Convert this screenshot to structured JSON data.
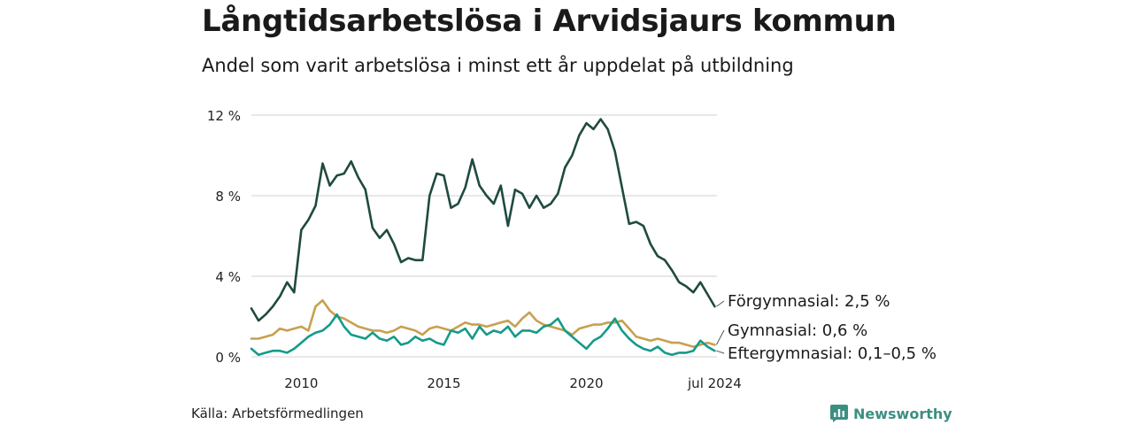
{
  "chart_data": {
    "type": "line",
    "title": "Långtidsarbetslösa i Arvidsjaurs kommun",
    "subtitle": "Andel som varit arbetslösa i minst ett år uppdelat på utbildning",
    "ylim": [
      0,
      12
    ],
    "yticks": [
      {
        "value": 0,
        "label": "0 %"
      },
      {
        "value": 4,
        "label": "4 %"
      },
      {
        "value": 8,
        "label": "8 %"
      },
      {
        "value": 12,
        "label": "12 %"
      }
    ],
    "xlim": [
      2008.25,
      2024.58
    ],
    "xticks": [
      {
        "value": 2010,
        "label": "2010"
      },
      {
        "value": 2015,
        "label": "2015"
      },
      {
        "value": 2020,
        "label": "2020"
      },
      {
        "value": 2024.5,
        "label": "jul 2024"
      }
    ],
    "grid": true,
    "series": [
      {
        "name": "Förgymnasial",
        "end_label": "Förgymnasial: 2,5 %",
        "color": "#1f4a40",
        "x": [
          2008.25,
          2008.5,
          2008.75,
          2009.0,
          2009.25,
          2009.5,
          2009.75,
          2010.0,
          2010.25,
          2010.5,
          2010.75,
          2011.0,
          2011.25,
          2011.5,
          2011.75,
          2012.0,
          2012.25,
          2012.5,
          2012.75,
          2013.0,
          2013.25,
          2013.5,
          2013.75,
          2014.0,
          2014.25,
          2014.5,
          2014.75,
          2015.0,
          2015.25,
          2015.5,
          2015.75,
          2016.0,
          2016.25,
          2016.5,
          2016.75,
          2017.0,
          2017.25,
          2017.5,
          2017.75,
          2018.0,
          2018.25,
          2018.5,
          2018.75,
          2019.0,
          2019.25,
          2019.5,
          2019.75,
          2020.0,
          2020.25,
          2020.5,
          2020.75,
          2021.0,
          2021.25,
          2021.5,
          2021.75,
          2022.0,
          2022.25,
          2022.5,
          2022.75,
          2023.0,
          2023.25,
          2023.5,
          2023.75,
          2024.0,
          2024.25,
          2024.5
        ],
        "values": [
          2.4,
          1.8,
          2.1,
          2.5,
          3.0,
          3.7,
          3.2,
          6.3,
          6.8,
          7.5,
          9.6,
          8.5,
          9.0,
          9.1,
          9.7,
          8.9,
          8.3,
          6.4,
          5.9,
          6.3,
          5.6,
          4.7,
          4.9,
          4.8,
          4.8,
          8.0,
          9.1,
          9.0,
          7.4,
          7.6,
          8.4,
          9.8,
          8.5,
          8.0,
          7.6,
          8.5,
          6.5,
          8.3,
          8.1,
          7.4,
          8.0,
          7.4,
          7.6,
          8.1,
          9.4,
          10.0,
          11.0,
          11.6,
          11.3,
          11.8,
          11.3,
          10.2,
          8.4,
          6.6,
          6.7,
          6.5,
          5.6,
          5.0,
          4.8,
          4.3,
          3.7,
          3.5,
          3.2,
          3.7,
          3.1,
          2.5
        ]
      },
      {
        "name": "Gymnasial",
        "end_label": "Gymnasial: 0,6 %",
        "color": "#c8a050",
        "x": [
          2008.25,
          2008.5,
          2008.75,
          2009.0,
          2009.25,
          2009.5,
          2009.75,
          2010.0,
          2010.25,
          2010.5,
          2010.75,
          2011.0,
          2011.25,
          2011.5,
          2011.75,
          2012.0,
          2012.25,
          2012.5,
          2012.75,
          2013.0,
          2013.25,
          2013.5,
          2013.75,
          2014.0,
          2014.25,
          2014.5,
          2014.75,
          2015.0,
          2015.25,
          2015.5,
          2015.75,
          2016.0,
          2016.25,
          2016.5,
          2016.75,
          2017.0,
          2017.25,
          2017.5,
          2017.75,
          2018.0,
          2018.25,
          2018.5,
          2018.75,
          2019.0,
          2019.25,
          2019.5,
          2019.75,
          2020.0,
          2020.25,
          2020.5,
          2020.75,
          2021.0,
          2021.25,
          2021.5,
          2021.75,
          2022.0,
          2022.25,
          2022.5,
          2022.75,
          2023.0,
          2023.25,
          2023.5,
          2023.75,
          2024.0,
          2024.25,
          2024.5
        ],
        "values": [
          0.9,
          0.9,
          1.0,
          1.1,
          1.4,
          1.3,
          1.4,
          1.5,
          1.3,
          2.5,
          2.8,
          2.3,
          2.0,
          1.9,
          1.7,
          1.5,
          1.4,
          1.3,
          1.3,
          1.2,
          1.3,
          1.5,
          1.4,
          1.3,
          1.1,
          1.4,
          1.5,
          1.4,
          1.3,
          1.5,
          1.7,
          1.6,
          1.6,
          1.5,
          1.6,
          1.7,
          1.8,
          1.5,
          1.9,
          2.2,
          1.8,
          1.6,
          1.5,
          1.4,
          1.3,
          1.1,
          1.4,
          1.5,
          1.6,
          1.6,
          1.7,
          1.7,
          1.8,
          1.4,
          1.0,
          0.9,
          0.8,
          0.9,
          0.8,
          0.7,
          0.7,
          0.6,
          0.5,
          0.6,
          0.7,
          0.6
        ]
      },
      {
        "name": "Eftergymnasial",
        "end_label": "Eftergymnasial: 0,1–0,5 %",
        "color": "#159a8a",
        "x": [
          2008.25,
          2008.5,
          2008.75,
          2009.0,
          2009.25,
          2009.5,
          2009.75,
          2010.0,
          2010.25,
          2010.5,
          2010.75,
          2011.0,
          2011.25,
          2011.5,
          2011.75,
          2012.0,
          2012.25,
          2012.5,
          2012.75,
          2013.0,
          2013.25,
          2013.5,
          2013.75,
          2014.0,
          2014.25,
          2014.5,
          2014.75,
          2015.0,
          2015.25,
          2015.5,
          2015.75,
          2016.0,
          2016.25,
          2016.5,
          2016.75,
          2017.0,
          2017.25,
          2017.5,
          2017.75,
          2018.0,
          2018.25,
          2018.5,
          2018.75,
          2019.0,
          2019.25,
          2019.5,
          2019.75,
          2020.0,
          2020.25,
          2020.5,
          2020.75,
          2021.0,
          2021.25,
          2021.5,
          2021.75,
          2022.0,
          2022.25,
          2022.5,
          2022.75,
          2023.0,
          2023.25,
          2023.5,
          2023.75,
          2024.0,
          2024.25,
          2024.5
        ],
        "values": [
          0.4,
          0.1,
          0.2,
          0.3,
          0.3,
          0.2,
          0.4,
          0.7,
          1.0,
          1.2,
          1.3,
          1.6,
          2.1,
          1.5,
          1.1,
          1.0,
          0.9,
          1.2,
          0.9,
          0.8,
          1.0,
          0.6,
          0.7,
          1.0,
          0.8,
          0.9,
          0.7,
          0.6,
          1.3,
          1.2,
          1.4,
          0.9,
          1.5,
          1.1,
          1.3,
          1.2,
          1.5,
          1.0,
          1.3,
          1.3,
          1.2,
          1.5,
          1.6,
          1.9,
          1.3,
          1.0,
          0.7,
          0.4,
          0.8,
          1.0,
          1.4,
          1.9,
          1.3,
          0.9,
          0.6,
          0.4,
          0.3,
          0.5,
          0.2,
          0.1,
          0.2,
          0.2,
          0.3,
          0.8,
          0.5,
          0.3
        ]
      }
    ],
    "source": "Källa: Arbetsförmedlingen",
    "brand": "Newsworthy"
  },
  "colors": {
    "grid": "#d9d9d9",
    "axis_text": "#222222",
    "brand": "#3c8f80"
  }
}
